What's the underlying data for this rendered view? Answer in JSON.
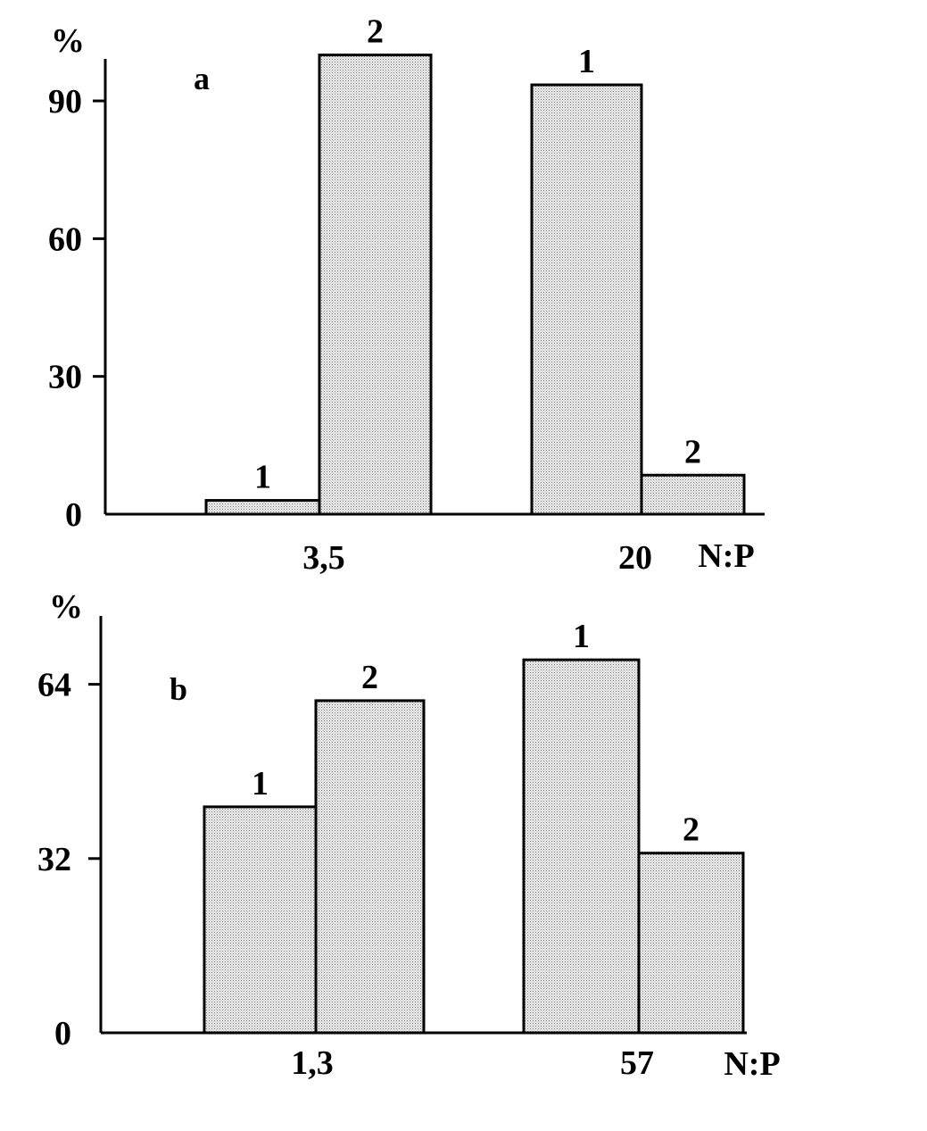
{
  "chart_data": [
    {
      "type": "bar",
      "panel_label": "a",
      "y_unit_label": "%",
      "x_axis_label": "N:P",
      "categories": [
        "3,5",
        "20"
      ],
      "series": [
        {
          "name": "1",
          "values": [
            3,
            93.5
          ]
        },
        {
          "name": "2",
          "values": [
            100,
            8.5
          ]
        }
      ],
      "yticks": [
        0,
        30,
        60,
        90
      ],
      "ylim": [
        0,
        100
      ],
      "grid": false,
      "bar_fill": "dotted-gray",
      "colors": {
        "fill": "#d6d6d6",
        "stroke": "#000000",
        "background": "#ffffff"
      }
    },
    {
      "type": "bar",
      "panel_label": "b",
      "y_unit_label": "%",
      "x_axis_label": "N:P",
      "categories": [
        "1,3",
        "57"
      ],
      "series": [
        {
          "name": "1",
          "values": [
            41.5,
            68.5
          ]
        },
        {
          "name": "2",
          "values": [
            61,
            33
          ]
        }
      ],
      "yticks": [
        0,
        32,
        64
      ],
      "ylim": [
        0,
        70
      ],
      "grid": false,
      "bar_fill": "dotted-gray",
      "colors": {
        "fill": "#d6d6d6",
        "stroke": "#000000",
        "background": "#ffffff"
      }
    }
  ]
}
